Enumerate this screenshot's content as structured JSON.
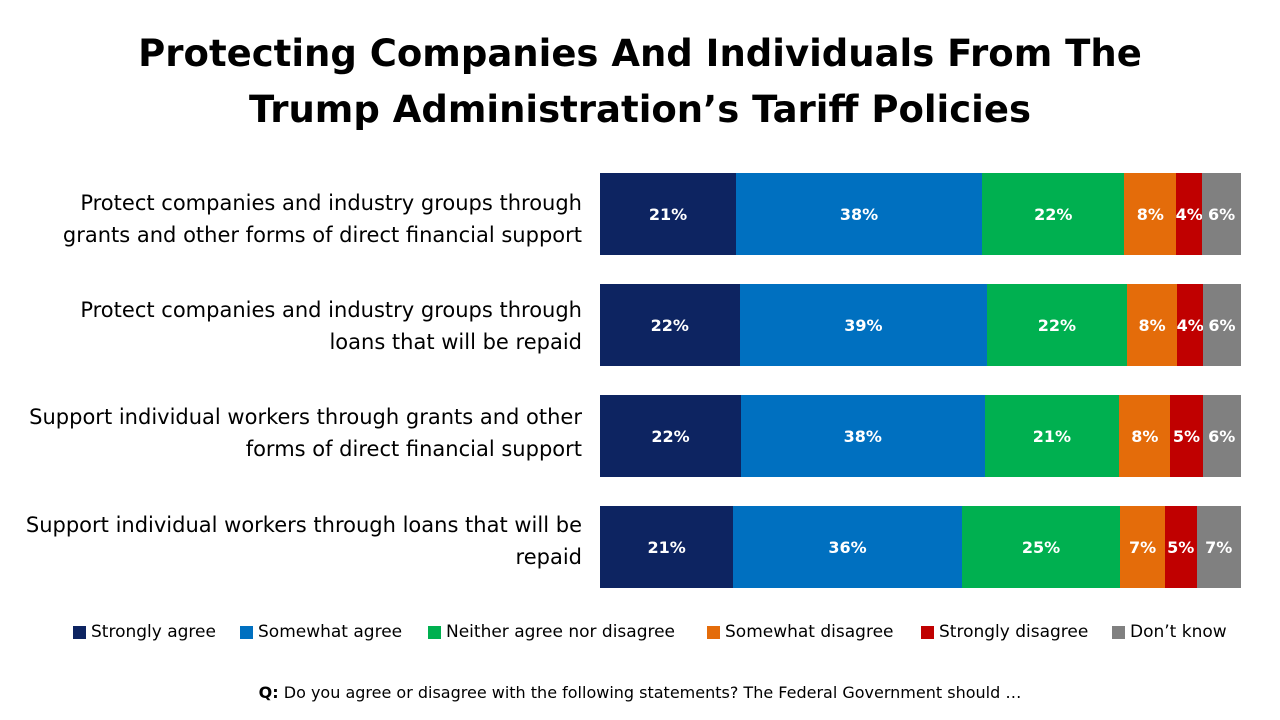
{
  "chart_data": {
    "type": "bar",
    "orientation": "horizontal-stacked",
    "title_lines": [
      "Protecting Companies And Individuals From The",
      "Trump Administration’s Tariff Policies"
    ],
    "categories": [
      [
        "Protect companies and industry groups through",
        "grants and other forms of direct financial support"
      ],
      [
        "Protect companies and industry groups through",
        "loans that will be repaid"
      ],
      [
        "Support individual workers through grants and other",
        "forms of direct financial support"
      ],
      [
        "Support individual workers through loans that will be",
        "repaid"
      ]
    ],
    "series": [
      {
        "name": "Strongly agree",
        "color": "#0d2461",
        "values": [
          21,
          22,
          22,
          21
        ]
      },
      {
        "name": "Somewhat agree",
        "color": "#0070c0",
        "values": [
          38,
          39,
          38,
          36
        ]
      },
      {
        "name": "Neither agree nor disagree",
        "color": "#00b050",
        "values": [
          22,
          22,
          21,
          25
        ]
      },
      {
        "name": "Somewhat disagree",
        "color": "#e46c0a",
        "values": [
          8,
          8,
          8,
          7
        ]
      },
      {
        "name": "Strongly disagree",
        "color": "#c00000",
        "values": [
          4,
          4,
          5,
          5
        ]
      },
      {
        "name": "Don’t know",
        "color": "#808080",
        "values": [
          6,
          6,
          6,
          7
        ]
      }
    ],
    "value_suffix": "%",
    "legend_position": "bottom",
    "grid": false
  },
  "footer": {
    "question_prefix": "Q:",
    "question_text": " Do you agree or disagree with the following statements? The Federal Government should …"
  }
}
